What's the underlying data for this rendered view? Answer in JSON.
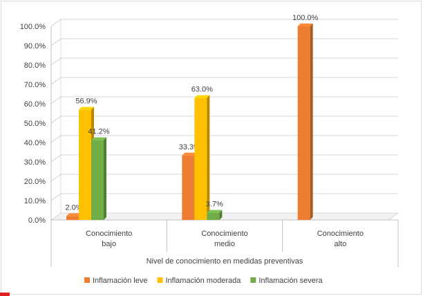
{
  "chart_data": {
    "type": "bar",
    "title": "",
    "xlabel": "Nivel de conocimiento en medidas preventivas",
    "ylabel": "",
    "ylim": [
      0,
      100
    ],
    "ytick_step": 10,
    "grid": true,
    "legend_position": "bottom",
    "categories": [
      [
        "Conocimiento",
        "bajo"
      ],
      [
        "Conocimiento",
        "medio"
      ],
      [
        "Conocimiento",
        "alto"
      ]
    ],
    "series": [
      {
        "name": "Inflamación leve",
        "color": "#ED7D31",
        "values": [
          2.0,
          33.3,
          100.0
        ],
        "labels": [
          "2.0%",
          "33.3%",
          "100.0%"
        ]
      },
      {
        "name": "Inflamación moderada",
        "color": "#FFC000",
        "values": [
          56.9,
          63.0,
          null
        ],
        "labels": [
          "56.9%",
          "63.0%",
          ""
        ]
      },
      {
        "name": "Inflamación severa",
        "color": "#70AD47",
        "values": [
          41.2,
          3.7,
          null
        ],
        "labels": [
          "41.2%",
          "3.7%",
          ""
        ]
      }
    ]
  }
}
